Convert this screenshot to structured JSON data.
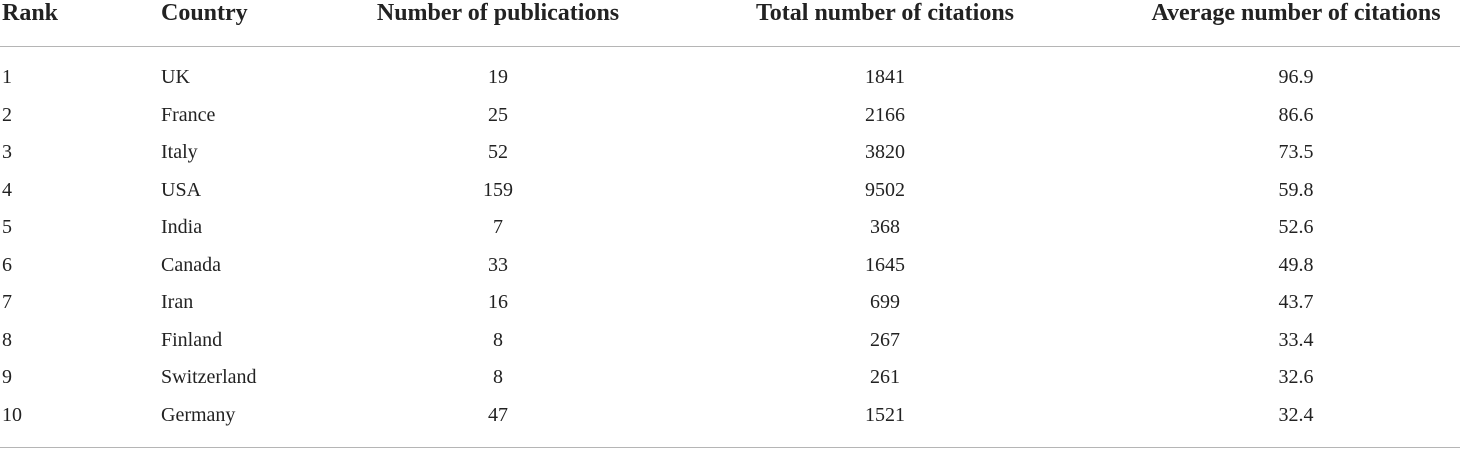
{
  "table": {
    "header": [
      "Rank",
      "Country",
      "Number of publications",
      "Total number of citations",
      "Average number of citations"
    ],
    "rows": [
      [
        1,
        "UK",
        19,
        1841,
        96.9
      ],
      [
        2,
        "France",
        25,
        2166,
        86.6
      ],
      [
        3,
        "Italy",
        52,
        3820,
        73.5
      ],
      [
        4,
        "USA",
        159,
        9502,
        59.8
      ],
      [
        5,
        "India",
        7,
        368,
        52.6
      ],
      [
        6,
        "Canada",
        33,
        1645,
        49.8
      ],
      [
        7,
        "Iran",
        16,
        699,
        43.7
      ],
      [
        8,
        "Finland",
        8,
        267,
        33.4
      ],
      [
        9,
        "Switzerland",
        8,
        261,
        32.6
      ],
      [
        10,
        "Germany",
        47,
        1521,
        32.4
      ]
    ]
  }
}
